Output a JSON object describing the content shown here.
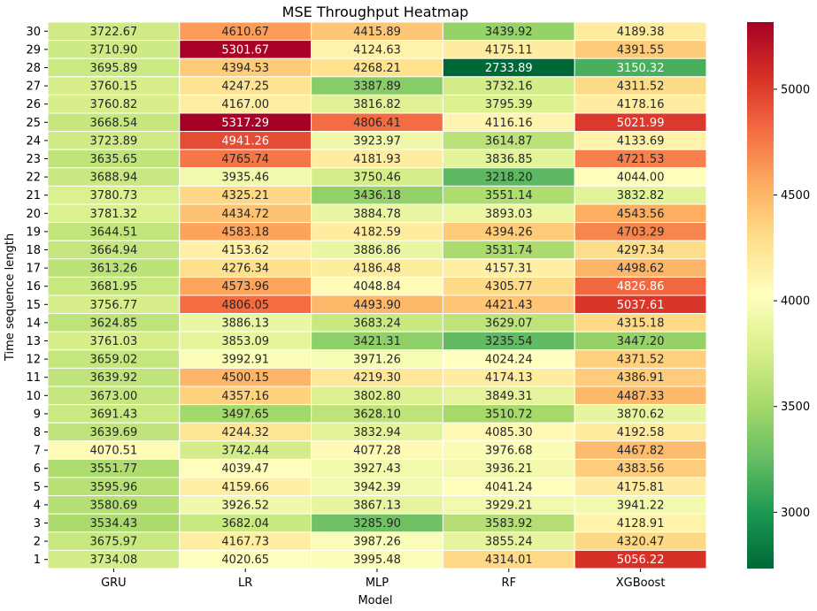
{
  "chart_data": {
    "type": "heatmap",
    "title": "MSE Throughput Heatmap",
    "xlabel": "Model",
    "ylabel": "Time sequence length",
    "columns": [
      "GRU",
      "LR",
      "MLP",
      "RF",
      "XGBoost"
    ],
    "rows": [
      "30",
      "29",
      "28",
      "27",
      "26",
      "25",
      "24",
      "23",
      "22",
      "21",
      "20",
      "19",
      "18",
      "17",
      "16",
      "15",
      "14",
      "13",
      "12",
      "11",
      "10",
      "9",
      "8",
      "7",
      "6",
      "5",
      "4",
      "3",
      "2",
      "1"
    ],
    "values": [
      [
        "3722.67",
        "4610.67",
        "4415.89",
        "3439.92",
        "4189.38"
      ],
      [
        "3710.90",
        "5301.67",
        "4124.63",
        "4175.11",
        "4391.55"
      ],
      [
        "3695.89",
        "4394.53",
        "4268.21",
        "2733.89",
        "3150.32"
      ],
      [
        "3760.15",
        "4247.25",
        "3387.89",
        "3732.16",
        "4311.52"
      ],
      [
        "3760.82",
        "4167.00",
        "3816.82",
        "3795.39",
        "4178.16"
      ],
      [
        "3668.54",
        "5317.29",
        "4806.41",
        "4116.16",
        "5021.99"
      ],
      [
        "3723.89",
        "4941.26",
        "3923.97",
        "3614.87",
        "4133.69"
      ],
      [
        "3635.65",
        "4765.74",
        "4181.93",
        "3836.85",
        "4721.53"
      ],
      [
        "3688.94",
        "3935.46",
        "3750.46",
        "3218.20",
        "4044.00"
      ],
      [
        "3780.73",
        "4325.21",
        "3436.18",
        "3551.14",
        "3832.82"
      ],
      [
        "3781.32",
        "4434.72",
        "3884.78",
        "3893.03",
        "4543.56"
      ],
      [
        "3644.51",
        "4583.18",
        "4182.59",
        "4394.26",
        "4703.29"
      ],
      [
        "3664.94",
        "4153.62",
        "3886.86",
        "3531.74",
        "4297.34"
      ],
      [
        "3613.26",
        "4276.34",
        "4186.48",
        "4157.31",
        "4498.62"
      ],
      [
        "3681.95",
        "4573.96",
        "4048.84",
        "4305.77",
        "4826.86"
      ],
      [
        "3756.77",
        "4806.05",
        "4493.90",
        "4421.43",
        "5037.61"
      ],
      [
        "3624.85",
        "3886.13",
        "3683.24",
        "3629.07",
        "4315.18"
      ],
      [
        "3761.03",
        "3853.09",
        "3421.31",
        "3235.54",
        "3447.20"
      ],
      [
        "3659.02",
        "3992.91",
        "3971.26",
        "4024.24",
        "4371.52"
      ],
      [
        "3639.92",
        "4500.15",
        "4219.30",
        "4174.13",
        "4386.91"
      ],
      [
        "3673.00",
        "4357.16",
        "3802.80",
        "3849.31",
        "4487.33"
      ],
      [
        "3691.43",
        "3497.65",
        "3628.10",
        "3510.72",
        "3870.62"
      ],
      [
        "3639.69",
        "4244.32",
        "3832.94",
        "4085.30",
        "4192.58"
      ],
      [
        "4070.51",
        "3742.44",
        "4077.28",
        "3976.68",
        "4467.82"
      ],
      [
        "3551.77",
        "4039.47",
        "3927.43",
        "3936.21",
        "4383.56"
      ],
      [
        "3595.96",
        "4159.66",
        "3942.39",
        "4041.24",
        "4175.81"
      ],
      [
        "3580.69",
        "3926.52",
        "3867.13",
        "3929.21",
        "3941.22"
      ],
      [
        "3534.43",
        "3682.04",
        "3285.90",
        "3583.92",
        "4128.91"
      ],
      [
        "3675.97",
        "4167.73",
        "3987.26",
        "3855.24",
        "4320.47"
      ],
      [
        "3734.08",
        "4020.65",
        "3995.48",
        "4314.01",
        "5056.22"
      ]
    ],
    "colorbar": {
      "colormap": "RdYlGn_r",
      "range": [
        2733.89,
        5317.29
      ],
      "ticks": [
        "3000",
        "3500",
        "4000",
        "4500",
        "5000"
      ]
    },
    "grid": "white cell borders",
    "legend": "colorbar at right"
  }
}
